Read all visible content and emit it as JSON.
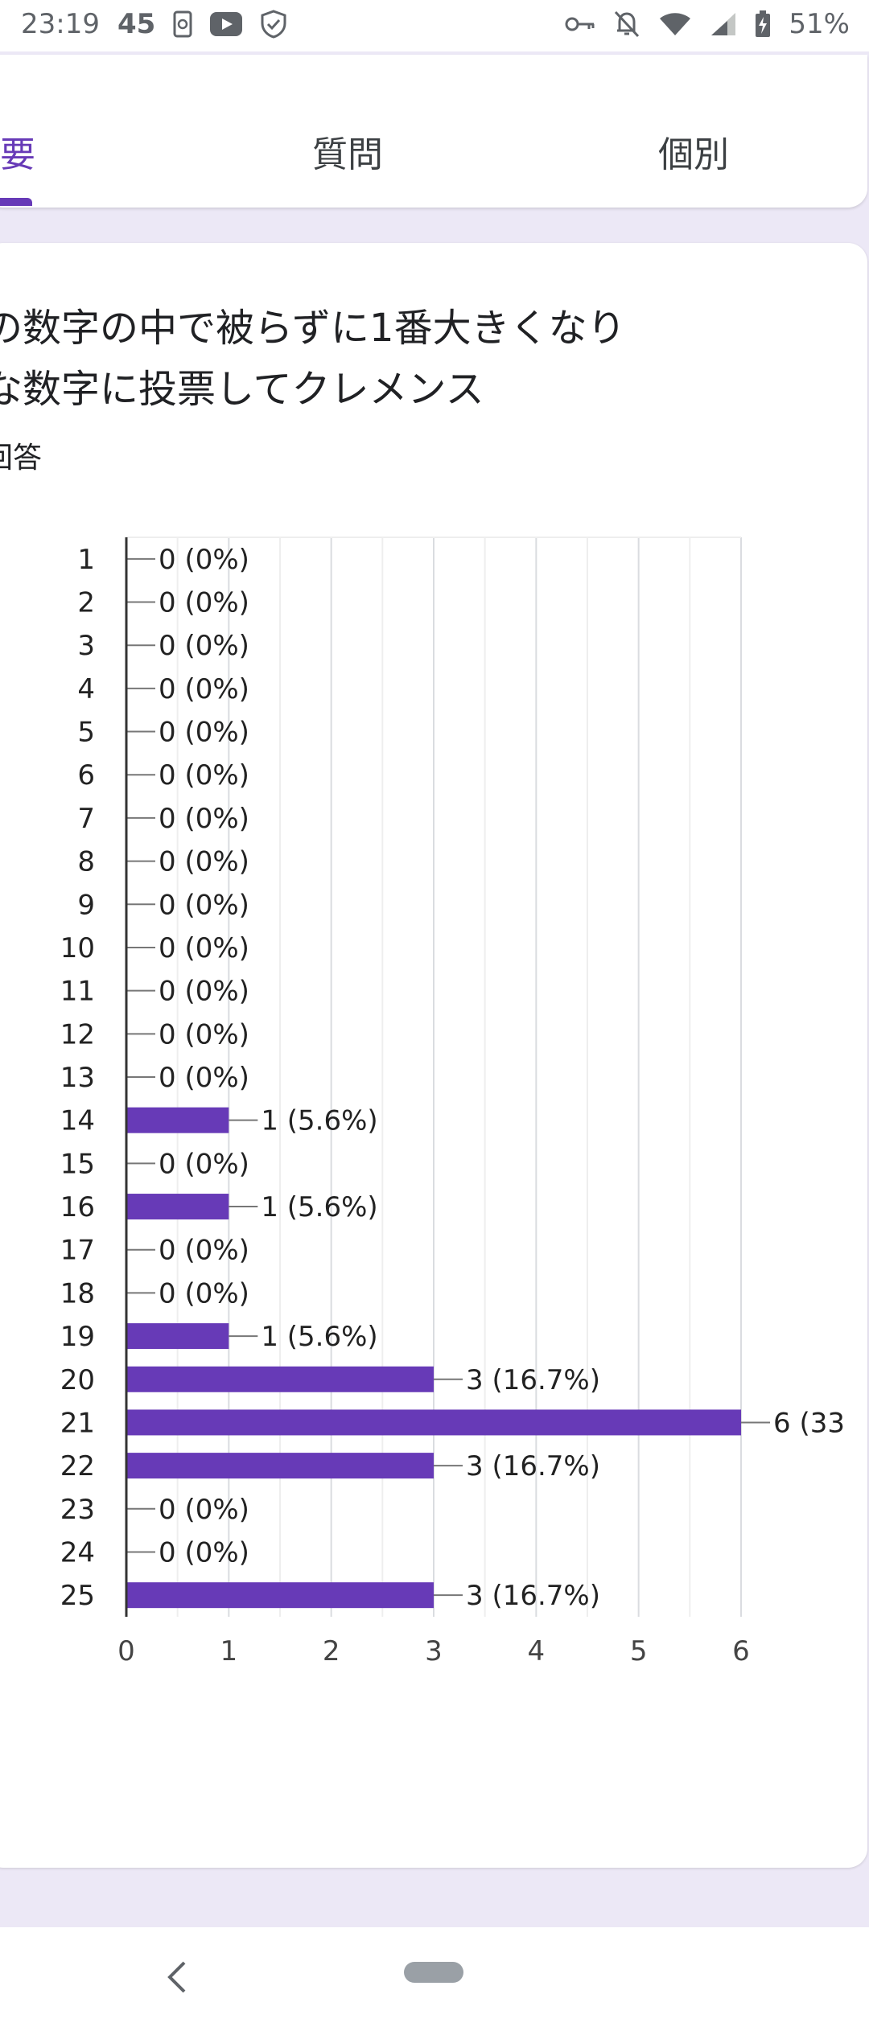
{
  "status_bar": {
    "time": "23:19",
    "notification_count": "45",
    "battery": "51%",
    "icons": [
      "screenshot-icon",
      "youtube-icon",
      "shield-check-icon",
      "vpn-key-icon",
      "notifications-off-icon",
      "wifi-icon",
      "signal-icon",
      "battery-icon"
    ]
  },
  "tabs": {
    "summary": "要",
    "question": "質問",
    "individual": "個別"
  },
  "question": {
    "title_line1": "の数字の中で被らずに1番大きくなり",
    "title_line2": "な数字に投票してクレメンス",
    "response_count": "回答"
  },
  "colors": {
    "accent": "#673ab7",
    "bar": "#673ab7"
  },
  "chart_data": {
    "type": "bar",
    "orientation": "horizontal",
    "categories": [
      "1",
      "2",
      "3",
      "4",
      "5",
      "6",
      "7",
      "8",
      "9",
      "10",
      "11",
      "12",
      "13",
      "14",
      "15",
      "16",
      "17",
      "18",
      "19",
      "20",
      "21",
      "22",
      "23",
      "24",
      "25"
    ],
    "values": [
      0,
      0,
      0,
      0,
      0,
      0,
      0,
      0,
      0,
      0,
      0,
      0,
      0,
      1,
      0,
      1,
      0,
      0,
      1,
      3,
      6,
      3,
      0,
      0,
      3
    ],
    "value_labels": [
      "0 (0%)",
      "0 (0%)",
      "0 (0%)",
      "0 (0%)",
      "0 (0%)",
      "0 (0%)",
      "0 (0%)",
      "0 (0%)",
      "0 (0%)",
      "0 (0%)",
      "0 (0%)",
      "0 (0%)",
      "0 (0%)",
      "1 (5.6%)",
      "0 (0%)",
      "1 (5.6%)",
      "0 (0%)",
      "0 (0%)",
      "1 (5.6%)",
      "3 (16.7%)",
      "6 (33",
      "3 (16.7%)",
      "0 (0%)",
      "0 (0%)",
      "3 (16.7%)"
    ],
    "xlim": [
      0,
      6
    ],
    "xticks": [
      "0",
      "1",
      "2",
      "3",
      "4",
      "5",
      "6"
    ],
    "grid": true
  },
  "nav": {
    "icons": [
      "back-icon",
      "home-pill"
    ]
  }
}
